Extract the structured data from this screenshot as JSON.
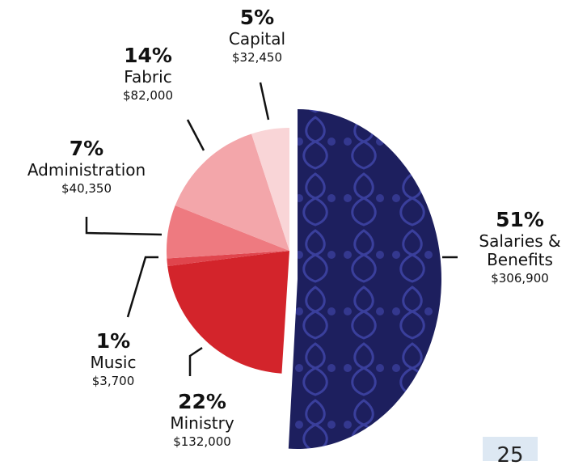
{
  "chart_data": {
    "type": "pie",
    "categories": [
      "Salaries & Benefits",
      "Ministry",
      "Music",
      "Administration",
      "Fabric",
      "Capital"
    ],
    "values": [
      51,
      22,
      1,
      7,
      14,
      5
    ],
    "value_labels": [
      "51%",
      "22%",
      "1%",
      "7%",
      "14%",
      "5%"
    ],
    "amounts": [
      306900,
      132000,
      3700,
      40350,
      82000,
      32450
    ],
    "amount_labels": [
      "$306,900",
      "$132,000",
      "$3,700",
      "$40,350",
      "$82,000",
      "$32,450"
    ],
    "colors": [
      "#1d1f5e",
      "#d3242b",
      "#e0454d",
      "#ee7a80",
      "#f3a6aa",
      "#f9d5d7"
    ]
  },
  "page_number": "25"
}
